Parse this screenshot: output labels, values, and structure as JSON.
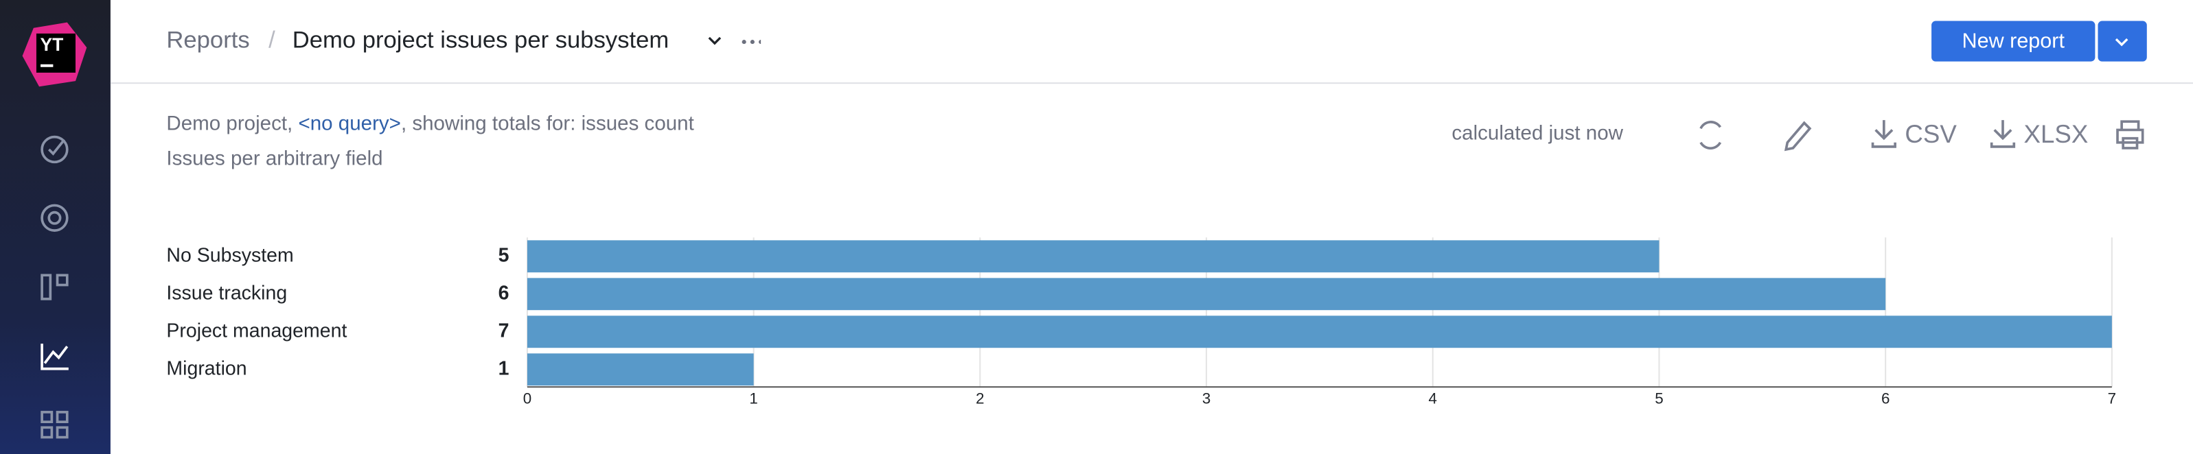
{
  "logo": "YT",
  "breadcrumb": {
    "parent": "Reports",
    "separator": "/",
    "current": "Demo project issues per subsystem"
  },
  "actions": {
    "new_report": "New report"
  },
  "report": {
    "project": "Demo project,",
    "query": "<no query>",
    "totals": ", showing totals for: issues count",
    "subtitle": "Issues per arbitrary field",
    "status": "calculated just now",
    "csv": "CSV",
    "xlsx": "XLSX"
  },
  "chart_data": {
    "type": "bar",
    "orientation": "horizontal",
    "categories": [
      "No Subsystem",
      "Issue tracking",
      "Project management",
      "Migration"
    ],
    "values": [
      5,
      6,
      7,
      1
    ],
    "color": "#5899c9",
    "xlim": [
      0,
      7
    ],
    "xticks": [
      0,
      1,
      2,
      3,
      4,
      5,
      6,
      7
    ],
    "grid": true
  }
}
